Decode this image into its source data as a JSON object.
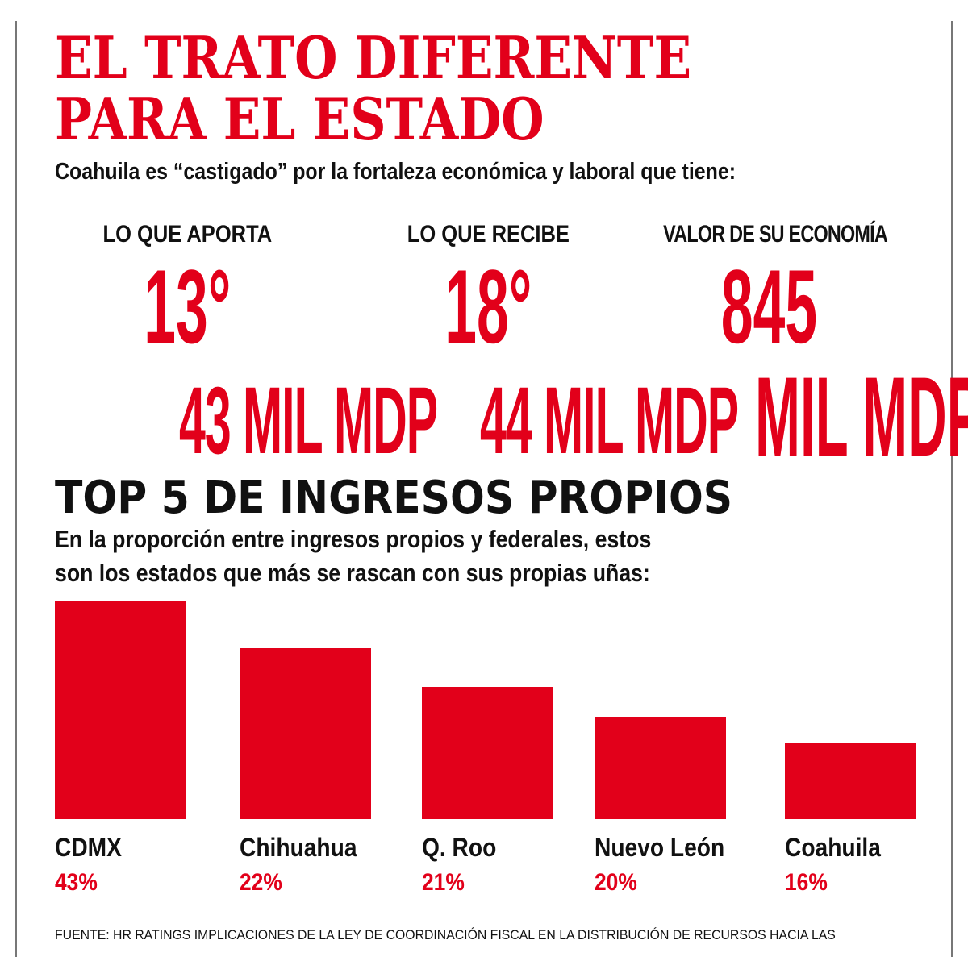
{
  "title_line1": "EL TRATO DIFERENTE",
  "title_line2": "PARA EL ESTADO",
  "subtitle": "Coahuila es “castigado” por la fortaleza económica y laboral que tiene:",
  "stats": [
    {
      "label": "LO QUE APORTA",
      "rank": "13°",
      "amount": "43 MIL MDP"
    },
    {
      "label": "LO QUE RECIBE",
      "rank": "18°",
      "amount": "44 MIL MDP"
    },
    {
      "label": "VALOR DE SU ECONOMÍA",
      "rank": "845",
      "amount": "MIL MDP"
    }
  ],
  "accent_color": "#e2001a",
  "chart_data": {
    "type": "bar",
    "title": "TOP 5 DE INGRESOS PROPIOS",
    "subtitle_line1": "En la proporción entre ingresos propios y federales, estos",
    "subtitle_line2": "son los estados que más se rascan con sus propias uñas:",
    "categories": [
      "CDMX",
      "Chihuahua",
      "Q. Roo",
      "Nuevo León",
      "Coahuila"
    ],
    "values": [
      43,
      22,
      21,
      20,
      16
    ],
    "value_labels": [
      "43%",
      "22%",
      "21%",
      "20%",
      "16%"
    ],
    "unit": "%",
    "bar_color": "#e2001a",
    "grid": false
  },
  "footer": "FUENTE: HR RATINGS IMPLICACIONES DE LA LEY DE COORDINACIÓN FISCAL EN LA DISTRIBUCIÓN DE RECURSOS HACIA LAS"
}
